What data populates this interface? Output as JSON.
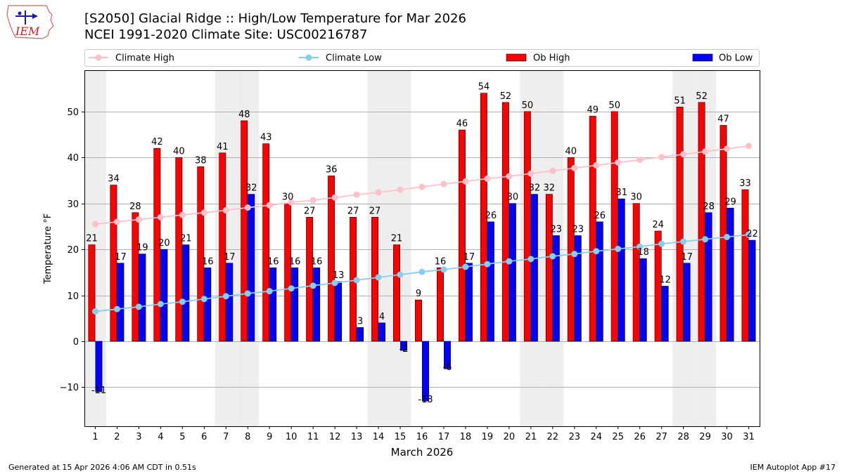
{
  "header": {
    "title_line1": "[S2050] Glacial Ridge :: High/Low Temperature for Mar 2026",
    "title_line2": "NCEI 1991-2020 Climate Site: USC00216787",
    "logo_text": "IEM"
  },
  "footer": {
    "generated": "Generated at 15 Apr 2026 4:06 AM CDT in 0.51s",
    "app": "IEM Autoplot App #17"
  },
  "colors": {
    "ob_high": "#ff0000",
    "ob_low": "#0000ff",
    "climate_high": "#ffc0cb",
    "climate_low": "#87ceeb",
    "weekend_shade": "#eeeeee",
    "grid": "#b0b0b0"
  },
  "chart_data": {
    "type": "bar",
    "title": "[S2050] Glacial Ridge :: High/Low Temperature for Mar 2026",
    "xlabel": "March 2026",
    "ylabel": "Temperature °F",
    "ylim": [
      -18.5,
      59
    ],
    "yticks": [
      -10,
      0,
      10,
      20,
      30,
      40,
      50
    ],
    "grid": true,
    "legend_position": "top",
    "categories": [
      1,
      2,
      3,
      4,
      5,
      6,
      7,
      8,
      9,
      10,
      11,
      12,
      13,
      14,
      15,
      16,
      17,
      18,
      19,
      20,
      21,
      22,
      23,
      24,
      25,
      26,
      27,
      28,
      29,
      30,
      31
    ],
    "shaded_days": [
      1,
      7,
      8,
      14,
      15,
      21,
      22,
      28,
      29
    ],
    "series": [
      {
        "name": "Ob High",
        "kind": "bar",
        "values": [
          21,
          34,
          28,
          42,
          40,
          38,
          41,
          48,
          43,
          30,
          27,
          36,
          27,
          27,
          21,
          9,
          16,
          46,
          54,
          52,
          50,
          32,
          40,
          49,
          50,
          30,
          24,
          51,
          52,
          47,
          33
        ],
        "labels": [
          "21",
          "34",
          "28",
          "42",
          "40",
          "38",
          "41",
          "48",
          "43",
          "30",
          "27",
          "36",
          "27",
          "27",
          "21",
          "9",
          "16",
          "46",
          "54",
          "52",
          "50",
          "32",
          "40",
          "49",
          "50",
          "30",
          "24",
          "51",
          "52",
          "47",
          "33"
        ]
      },
      {
        "name": "Ob Low",
        "kind": "bar",
        "values": [
          -11,
          17,
          19,
          20,
          21,
          16,
          17,
          32,
          16,
          16,
          16,
          13,
          3,
          4,
          -2,
          -13,
          -6,
          17,
          26,
          30,
          32,
          23,
          23,
          26,
          31,
          18,
          12,
          17,
          28,
          29,
          22
        ],
        "labels": [
          "-11",
          "17",
          "19",
          "20",
          "21",
          "16",
          "17",
          "32",
          "16",
          "16",
          "16",
          "13",
          "3",
          "4",
          "-2",
          "-13",
          "-6",
          "17",
          "26",
          "30",
          "32",
          "23",
          "23",
          "26",
          "31",
          "18",
          "12",
          "17",
          "28",
          "29",
          "22"
        ]
      },
      {
        "name": "Climate High",
        "kind": "line",
        "values": [
          25.5,
          26.0,
          26.5,
          27.0,
          27.5,
          28.0,
          28.5,
          29.1,
          29.6,
          30.2,
          30.7,
          31.3,
          31.9,
          32.4,
          33.0,
          33.6,
          34.2,
          34.8,
          35.4,
          35.9,
          36.5,
          37.1,
          37.7,
          38.3,
          38.9,
          39.5,
          40.1,
          40.7,
          41.3,
          41.9,
          42.5
        ]
      },
      {
        "name": "Climate Low",
        "kind": "line",
        "values": [
          6.5,
          7.0,
          7.5,
          8.1,
          8.6,
          9.2,
          9.8,
          10.4,
          10.9,
          11.5,
          12.1,
          12.7,
          13.3,
          13.9,
          14.5,
          15.1,
          15.6,
          16.2,
          16.8,
          17.4,
          17.9,
          18.5,
          19.0,
          19.6,
          20.1,
          20.6,
          21.2,
          21.7,
          22.2,
          22.7,
          23.2
        ]
      }
    ]
  }
}
